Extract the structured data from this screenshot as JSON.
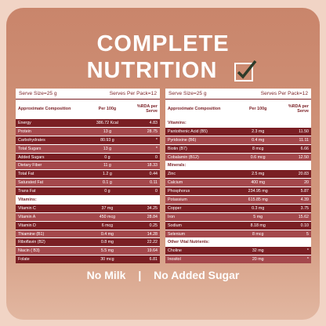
{
  "title_line1": "COMPLETE",
  "title_line2": "NUTRITION",
  "tables": [
    {
      "serve_size": "Serve Size=25 g",
      "serves_per_pack": "Serves Per Pack=12",
      "headers": [
        "Approximate Composition",
        "Per 100g",
        "%RDA per Serve"
      ],
      "rows": [
        [
          "Energy",
          "386.72 Kcal",
          "4.83"
        ],
        [
          "Protein",
          "13 g",
          "28.75"
        ],
        [
          "Carbohydrates",
          "80.93 g",
          "*"
        ],
        [
          "Total Sugars",
          "13 g",
          "*"
        ],
        [
          "Added Sugars",
          "0 g",
          "0"
        ],
        [
          "Dietary Fiber",
          "11 g",
          "18.33"
        ],
        [
          "Total Fat",
          "1.2 g",
          "0.44"
        ],
        [
          "Saturated Fat",
          "0.1 g",
          "0.11"
        ],
        [
          "Trans Fat",
          "0 g",
          "0"
        ],
        [
          "Vitamins:"
        ],
        [
          "Vitamin C",
          "37 mg",
          "34.25"
        ],
        [
          "Vitamin A",
          "450 mcg",
          "28.84"
        ],
        [
          "Vitamin D",
          "6 mcg",
          "0.25"
        ],
        [
          "Thiamine (B1)",
          "0.4 mg",
          "14.28"
        ],
        [
          "Riboflavin (B2)",
          "0.8 mg",
          "22.22"
        ],
        [
          "Niacin ( B3)",
          "5.5 mg",
          "19.64"
        ],
        [
          "Folate",
          "30 mcg",
          "6.81"
        ]
      ]
    },
    {
      "serve_size": "Serve Size=25 g",
      "serves_per_pack": "Serves Per Pack=12",
      "headers": [
        "Approximate Composition",
        "Per 100g",
        "%RDA per Serve"
      ],
      "rows": [
        [
          "Vitamins:"
        ],
        [
          "Pantothenic Acid (B5)",
          "2.3 mg",
          "11.50"
        ],
        [
          "Pyridoxine (B6)",
          "0.4 mg",
          "11.11"
        ],
        [
          "Biotin (B7)",
          "8 mcg",
          "6.66"
        ],
        [
          "Cobalamin (B12)",
          "0.6 mcg",
          "12.50"
        ],
        [
          "Minerals:"
        ],
        [
          "Zinc",
          "2.5 mg",
          "20.83"
        ],
        [
          "Calcium",
          "400 mg",
          "20"
        ],
        [
          "Phosphorus",
          "234.95 mg",
          "5.87"
        ],
        [
          "Potassium",
          "615.85 mg",
          "4.39"
        ],
        [
          "Copper",
          "0.3 mg",
          "3.75"
        ],
        [
          "Iron",
          "5 mg",
          "15.62"
        ],
        [
          "Sodium",
          "8.18 mg",
          "0.10"
        ],
        [
          "Selenium",
          "8 mcg",
          "5"
        ],
        [
          "Other Vital Nutrients:"
        ],
        [
          "Choline",
          "32 mg",
          "*"
        ],
        [
          "Inositol",
          "20 mg",
          "*"
        ]
      ]
    }
  ],
  "footer_left": "No Milk",
  "footer_sep": "|",
  "footer_right": "No Added Sugar"
}
